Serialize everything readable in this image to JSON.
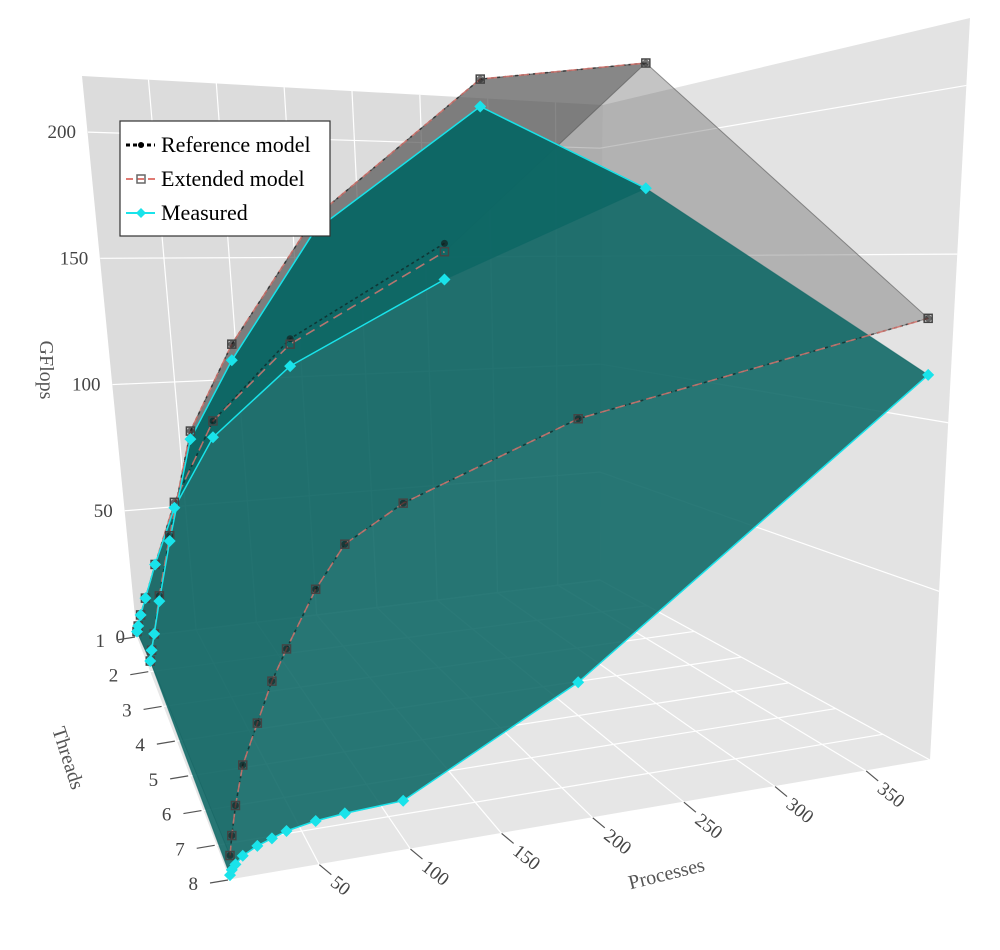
{
  "chart_data": {
    "type": "surface3d",
    "title": "",
    "xlabel": "Processes",
    "ylabel": "Threads",
    "zlabel": "GFlops",
    "xlim": [
      1,
      385
    ],
    "ylim": [
      1,
      8
    ],
    "zlim": [
      0,
      220
    ],
    "x_ticks": [
      50,
      100,
      150,
      200,
      250,
      300,
      350
    ],
    "y_ticks": [
      1,
      2,
      3,
      4,
      5,
      6,
      7,
      8
    ],
    "z_ticks": [
      0,
      50,
      100,
      150,
      200
    ],
    "legend": {
      "position": "top-left",
      "entries": [
        "Reference model",
        "Extended model",
        "Measured"
      ]
    },
    "colors": {
      "reference": "#111111",
      "extended": "#e07a73",
      "measured": "#19e3ea",
      "surface_measured": "#0d6664",
      "surface_model": "#555555",
      "pane_left": "#dcdcdc",
      "pane_right": "#e3e3e3",
      "pane_floor": "#e6e6e6",
      "grid": "#ffffff"
    },
    "series": [
      {
        "name": "Reference model",
        "points": [
          [
            1,
            1,
            2
          ],
          [
            2,
            1,
            4
          ],
          [
            4,
            1,
            8
          ],
          [
            8,
            1,
            14
          ],
          [
            16,
            1,
            26
          ],
          [
            32,
            1,
            48
          ],
          [
            64,
            1,
            76
          ],
          [
            128,
            1,
            102
          ],
          [
            256,
            1,
            128
          ],
          [
            1,
            2,
            4
          ],
          [
            2,
            2,
            8
          ],
          [
            4,
            2,
            14
          ],
          [
            8,
            2,
            28
          ],
          [
            16,
            2,
            50
          ],
          [
            32,
            2,
            88
          ],
          [
            64,
            2,
            118
          ],
          [
            128,
            2,
            160
          ],
          [
            256,
            2,
            200
          ],
          [
            384,
            2,
            195
          ],
          [
            1,
            8,
            10
          ],
          [
            2,
            8,
            18
          ],
          [
            4,
            8,
            30
          ],
          [
            8,
            8,
            46
          ],
          [
            16,
            8,
            62
          ],
          [
            24,
            8,
            78
          ],
          [
            32,
            8,
            90
          ],
          [
            48,
            8,
            112
          ],
          [
            64,
            8,
            128
          ],
          [
            96,
            8,
            140
          ],
          [
            192,
            8,
            160
          ],
          [
            384,
            8,
            172
          ]
        ]
      },
      {
        "name": "Extended model",
        "points": [
          [
            1,
            1,
            2
          ],
          [
            2,
            1,
            4
          ],
          [
            4,
            1,
            8
          ],
          [
            8,
            1,
            14
          ],
          [
            16,
            1,
            26
          ],
          [
            32,
            1,
            48
          ],
          [
            64,
            1,
            76
          ],
          [
            128,
            1,
            100
          ],
          [
            256,
            1,
            125
          ],
          [
            1,
            2,
            4
          ],
          [
            2,
            2,
            8
          ],
          [
            4,
            2,
            14
          ],
          [
            8,
            2,
            28
          ],
          [
            16,
            2,
            50
          ],
          [
            32,
            2,
            88
          ],
          [
            64,
            2,
            118
          ],
          [
            128,
            2,
            160
          ],
          [
            256,
            2,
            200
          ],
          [
            384,
            2,
            195
          ],
          [
            1,
            8,
            10
          ],
          [
            2,
            8,
            18
          ],
          [
            4,
            8,
            30
          ],
          [
            8,
            8,
            46
          ],
          [
            16,
            8,
            62
          ],
          [
            24,
            8,
            78
          ],
          [
            32,
            8,
            90
          ],
          [
            48,
            8,
            112
          ],
          [
            64,
            8,
            128
          ],
          [
            96,
            8,
            140
          ],
          [
            192,
            8,
            160
          ],
          [
            384,
            8,
            172
          ]
        ]
      },
      {
        "name": "Measured",
        "points": [
          [
            1,
            1,
            2
          ],
          [
            2,
            1,
            4
          ],
          [
            4,
            1,
            8
          ],
          [
            8,
            1,
            14
          ],
          [
            16,
            1,
            26
          ],
          [
            32,
            1,
            46
          ],
          [
            64,
            1,
            70
          ],
          [
            128,
            1,
            92
          ],
          [
            256,
            1,
            115
          ],
          [
            1,
            2,
            4
          ],
          [
            2,
            2,
            8
          ],
          [
            4,
            2,
            14
          ],
          [
            8,
            2,
            26
          ],
          [
            16,
            2,
            48
          ],
          [
            32,
            2,
            85
          ],
          [
            64,
            2,
            112
          ],
          [
            128,
            2,
            155
          ],
          [
            256,
            2,
            190
          ],
          [
            384,
            2,
            150
          ],
          [
            1,
            8,
            2
          ],
          [
            2,
            8,
            4
          ],
          [
            4,
            8,
            6
          ],
          [
            8,
            8,
            9
          ],
          [
            16,
            8,
            12
          ],
          [
            24,
            8,
            14
          ],
          [
            32,
            8,
            16
          ],
          [
            48,
            8,
            18
          ],
          [
            64,
            8,
            19
          ],
          [
            96,
            8,
            20
          ],
          [
            192,
            8,
            55
          ],
          [
            384,
            8,
            150
          ]
        ]
      }
    ]
  }
}
